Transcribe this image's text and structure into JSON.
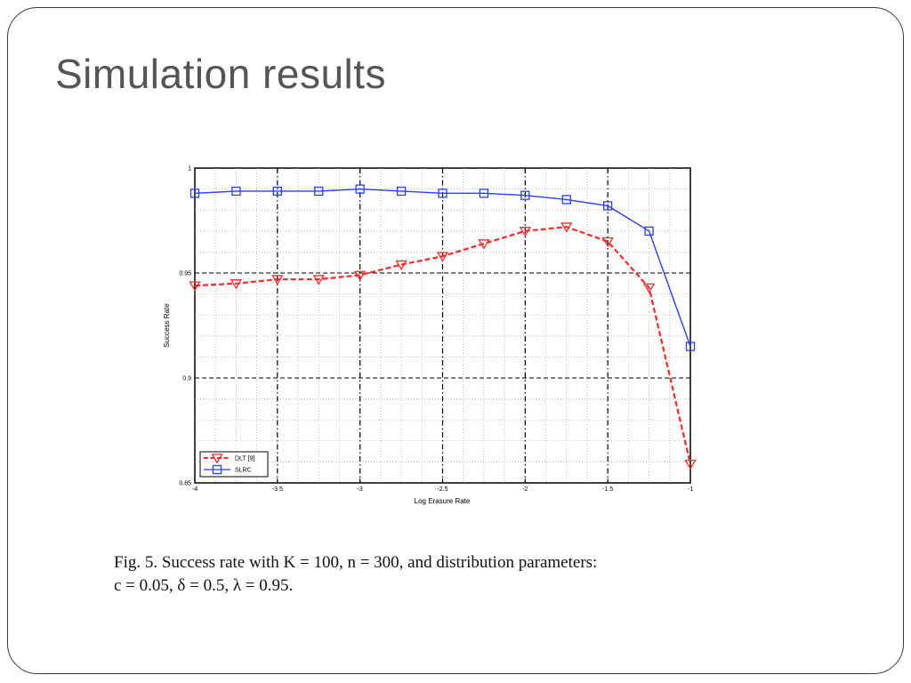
{
  "slide": {
    "title": "Simulation results"
  },
  "caption": {
    "line1": "Fig. 5.   Success rate with K = 100, n = 300, and distribution parameters:",
    "line2": "c = 0.05, δ = 0.5, λ = 0.95."
  },
  "chart_data": {
    "type": "line",
    "xlabel": "Log Erasure Rate",
    "ylabel": "Success Rate",
    "xlim": [
      -4,
      -1
    ],
    "ylim": [
      0.85,
      1
    ],
    "xticks": [
      -4,
      -3.5,
      -3,
      -2.5,
      -2,
      -1.5,
      -1
    ],
    "xtick_labels": [
      "-4",
      "-3.5",
      "-3",
      "-2.5",
      "-2",
      "-1.5",
      "-1"
    ],
    "yticks": [
      0.85,
      0.9,
      0.95,
      1
    ],
    "ytick_labels": [
      "0.85",
      "0.9",
      "0.95",
      "1"
    ],
    "grid": true,
    "legend_position": "bottom-left",
    "x": [
      -4,
      -3.75,
      -3.5,
      -3.25,
      -3,
      -2.75,
      -2.5,
      -2.25,
      -2,
      -1.75,
      -1.5,
      -1.25,
      -1
    ],
    "series": [
      {
        "name": "DLT [9]",
        "color": "#ff2a2a",
        "line_style": "dashed",
        "marker": "triangle-down",
        "values": [
          0.944,
          0.945,
          0.947,
          0.947,
          0.949,
          0.954,
          0.958,
          0.964,
          0.97,
          0.972,
          0.965,
          0.943,
          0.859
        ]
      },
      {
        "name": "SLRC",
        "color": "#2a3fff",
        "line_style": "solid",
        "marker": "square",
        "values": [
          0.988,
          0.989,
          0.989,
          0.989,
          0.99,
          0.989,
          0.988,
          0.988,
          0.987,
          0.985,
          0.982,
          0.97,
          0.915
        ]
      }
    ]
  }
}
